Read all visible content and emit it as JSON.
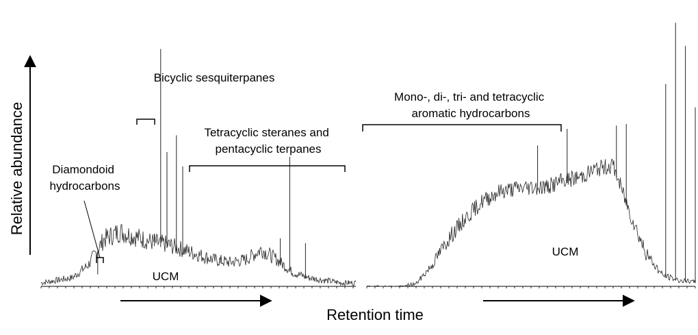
{
  "figure": {
    "y_axis_label": "Relative abundance",
    "x_axis_label": "Retention time"
  },
  "chart_data": [
    {
      "type": "line",
      "panel": "left",
      "description_labels": {
        "diamondoid": [
          "Diamondoid",
          "hydrocarbons"
        ],
        "bicyclic": [
          "Bicyclic sesquiterpanes"
        ],
        "steranes": [
          "Tetracyclic steranes and",
          "pentacyclic terpanes"
        ],
        "ucm": "UCM"
      },
      "retention_time": [
        0.0,
        0.05,
        0.1,
        0.15,
        0.2,
        0.25,
        0.3,
        0.35,
        0.4,
        0.45,
        0.5,
        0.55,
        0.6,
        0.65,
        0.7,
        0.75,
        0.8,
        0.85,
        0.9,
        0.95,
        1.0
      ],
      "baseline_abundance": [
        1,
        2,
        3,
        8,
        18,
        21,
        19,
        17,
        16,
        14,
        12,
        10,
        9,
        10,
        14,
        10,
        5,
        3,
        2,
        1,
        1
      ],
      "peaks": [
        {
          "x": 0.18,
          "y": 5
        },
        {
          "x": 0.38,
          "y": 99
        },
        {
          "x": 0.4,
          "y": 56
        },
        {
          "x": 0.43,
          "y": 63
        },
        {
          "x": 0.45,
          "y": 50
        },
        {
          "x": 0.36,
          "y": 22
        },
        {
          "x": 0.57,
          "y": 12
        },
        {
          "x": 0.76,
          "y": 20
        },
        {
          "x": 0.79,
          "y": 54
        },
        {
          "x": 0.84,
          "y": 18
        }
      ]
    },
    {
      "type": "line",
      "panel": "right",
      "description_labels": {
        "aromatics": [
          "Mono-, di-, tri- and tetracyclic",
          "aromatic hydrocarbons"
        ],
        "ucm": "UCM"
      },
      "retention_time": [
        0.0,
        0.05,
        0.1,
        0.15,
        0.2,
        0.25,
        0.3,
        0.35,
        0.4,
        0.45,
        0.5,
        0.55,
        0.6,
        0.65,
        0.7,
        0.75,
        0.8,
        0.85,
        0.9,
        0.95,
        1.0
      ],
      "baseline_abundance": [
        0,
        0,
        0,
        1,
        12,
        27,
        39,
        49,
        55,
        57,
        58,
        58,
        62,
        64,
        69,
        71,
        43,
        18,
        6,
        3,
        2
      ],
      "peaks": [
        {
          "x": 0.52,
          "y": 85
        },
        {
          "x": 0.61,
          "y": 95
        },
        {
          "x": 0.79,
          "y": 98
        },
        {
          "x": 0.76,
          "y": 97
        },
        {
          "x": 0.91,
          "y": 122
        },
        {
          "x": 0.94,
          "y": 159
        },
        {
          "x": 0.97,
          "y": 145
        },
        {
          "x": 1.0,
          "y": 108
        }
      ]
    }
  ]
}
